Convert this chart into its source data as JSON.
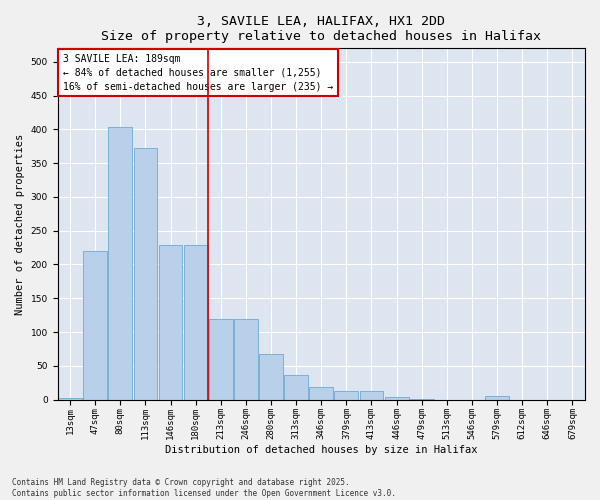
{
  "title": "3, SAVILE LEA, HALIFAX, HX1 2DD",
  "subtitle": "Size of property relative to detached houses in Halifax",
  "xlabel": "Distribution of detached houses by size in Halifax",
  "ylabel": "Number of detached properties",
  "categories": [
    "13sqm",
    "47sqm",
    "80sqm",
    "113sqm",
    "146sqm",
    "180sqm",
    "213sqm",
    "246sqm",
    "280sqm",
    "313sqm",
    "346sqm",
    "379sqm",
    "413sqm",
    "446sqm",
    "479sqm",
    "513sqm",
    "546sqm",
    "579sqm",
    "612sqm",
    "646sqm",
    "679sqm"
  ],
  "values": [
    3,
    220,
    403,
    373,
    229,
    229,
    119,
    119,
    68,
    37,
    18,
    13,
    12,
    4,
    1,
    0,
    0,
    5,
    0,
    0,
    0
  ],
  "bar_color": "#b8d0ea",
  "bar_edge_color": "#7aafd4",
  "vline_x": 5.5,
  "vline_color": "#cc0000",
  "annotation_text": "3 SAVILE LEA: 189sqm\n← 84% of detached houses are smaller (1,255)\n16% of semi-detached houses are larger (235) →",
  "box_color": "#cc0000",
  "ylim": [
    0,
    520
  ],
  "yticks": [
    0,
    50,
    100,
    150,
    200,
    250,
    300,
    350,
    400,
    450,
    500
  ],
  "background_color": "#dde6f0",
  "grid_color": "#ffffff",
  "footer_text": "Contains HM Land Registry data © Crown copyright and database right 2025.\nContains public sector information licensed under the Open Government Licence v3.0.",
  "title_fontsize": 9.5,
  "label_fontsize": 7.5,
  "tick_fontsize": 6.5,
  "annotation_fontsize": 7,
  "footer_fontsize": 5.5
}
